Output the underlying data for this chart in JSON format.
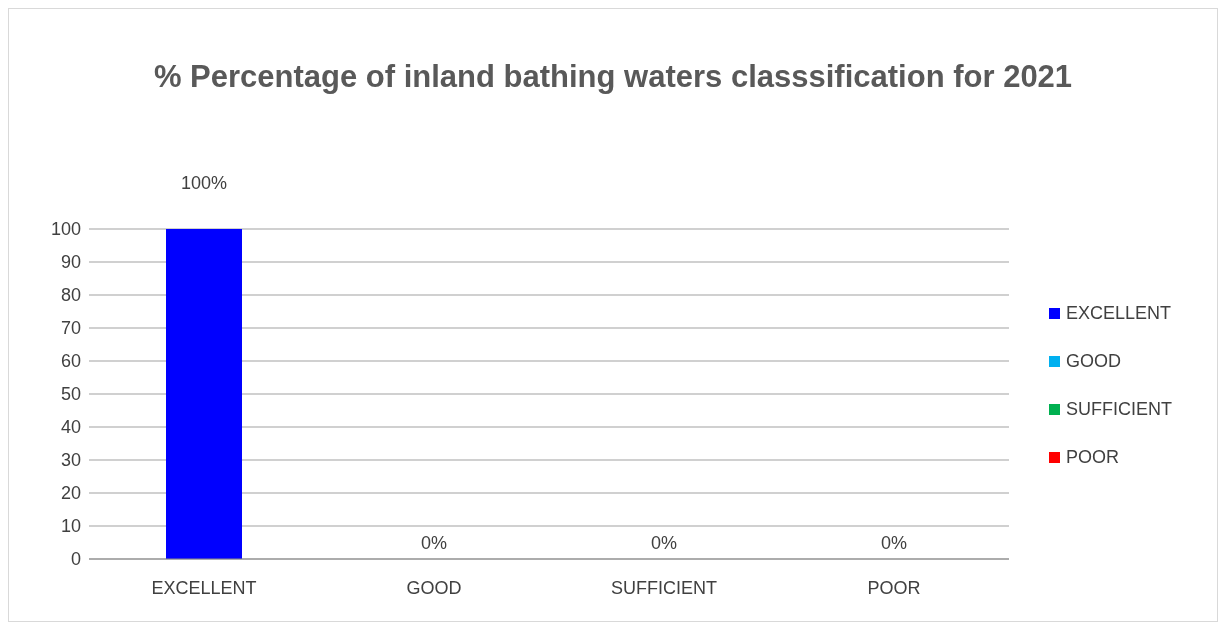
{
  "chart_data": {
    "type": "bar",
    "title": "% Percentage of inland bathing waters classsification for 2021",
    "categories": [
      "EXCELLENT",
      "GOOD",
      "SUFFICIENT",
      "POOR"
    ],
    "series": [
      {
        "name": "EXCELLENT",
        "color": "#0000ff",
        "values": [
          100,
          null,
          null,
          null
        ],
        "value_labels": [
          "100%",
          null,
          null,
          null
        ]
      },
      {
        "name": "GOOD",
        "color": "#00b0f0",
        "values": [
          null,
          0,
          null,
          null
        ],
        "value_labels": [
          null,
          "0%",
          null,
          null
        ]
      },
      {
        "name": "SUFFICIENT",
        "color": "#00b050",
        "values": [
          null,
          null,
          0,
          null
        ],
        "value_labels": [
          null,
          null,
          "0%",
          null
        ]
      },
      {
        "name": "POOR",
        "color": "#ff0000",
        "values": [
          null,
          null,
          null,
          0
        ],
        "value_labels": [
          null,
          null,
          null,
          "0%"
        ]
      }
    ],
    "ylim": [
      0,
      100
    ],
    "yticks": [
      0,
      10,
      20,
      30,
      40,
      50,
      60,
      70,
      80,
      90,
      100
    ],
    "grid": "y",
    "legend": "right"
  }
}
